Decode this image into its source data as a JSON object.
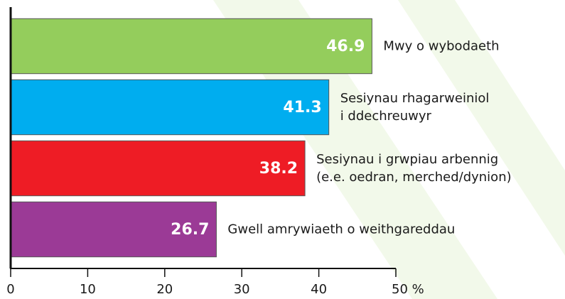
{
  "chart_data": {
    "type": "bar",
    "orientation": "horizontal",
    "categories": [
      "Mwy o wybodaeth",
      "Sesiynau rhagarweiniol i ddechreuwyr",
      "Sesiynau i grwpiau arbennig (e.e. oedran, merched/dynion)",
      "Gwell amrywiaeth o weithgareddau"
    ],
    "values": [
      46.9,
      41.3,
      38.2,
      26.7
    ],
    "colors": [
      "#94cd5c",
      "#00adef",
      "#ee1c25",
      "#9b3a96"
    ],
    "xlim": [
      0,
      50
    ],
    "xticks": [
      0,
      10,
      20,
      30,
      40,
      {
        "value": 50,
        "label": "50 %"
      }
    ]
  }
}
